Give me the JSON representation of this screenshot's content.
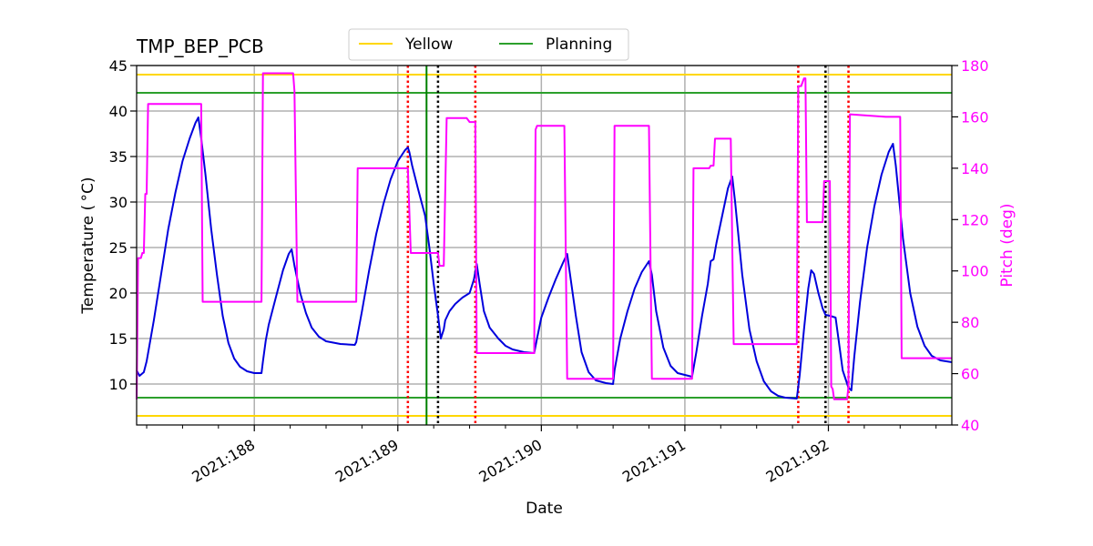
{
  "chart_data": {
    "type": "line",
    "title": "TMP_BEP_PCB",
    "xlabel": "Date",
    "ylabel_left": "Temperature ($^\\circ$C)",
    "ylabel_left_display": "Temperature ( °C)",
    "ylabel_right": "Pitch (deg)",
    "xlim": [
      187.18,
      192.86
    ],
    "ylim_left": [
      5.5,
      45
    ],
    "ylim_right": [
      40,
      180
    ],
    "x_ticks": [
      188,
      189,
      190,
      191,
      192
    ],
    "x_tick_labels": [
      "2021:188",
      "2021:189",
      "2021:190",
      "2021:191",
      "2021:192"
    ],
    "y_left_ticks": [
      10,
      15,
      20,
      25,
      30,
      35,
      40,
      45
    ],
    "y_right_ticks": [
      40,
      60,
      80,
      100,
      120,
      140,
      160,
      180
    ],
    "grid": true,
    "legend": {
      "placement": "top-center",
      "entries": [
        {
          "label": "Yellow",
          "color": "#ffd700"
        },
        {
          "label": "Planning",
          "color": "#2ca02c"
        }
      ]
    },
    "colors": {
      "temperature": "#0000dd",
      "pitch": "#ff00ff",
      "yellow": "#ffd700",
      "planning": "#2ca02c",
      "red_marker": "#ff0000",
      "black_marker": "#000000",
      "now_marker": "#008000"
    },
    "hlines_left": [
      {
        "y": 44,
        "color": "#ffd700"
      },
      {
        "y": 6.5,
        "color": "#ffd700"
      },
      {
        "y": 42,
        "color": "#2ca02c"
      },
      {
        "y": 8.5,
        "color": "#2ca02c"
      }
    ],
    "vlines_red_dotted": [
      189.07,
      189.54,
      191.79,
      192.14
    ],
    "vlines_black_dotted": [
      189.28,
      191.98
    ],
    "vline_green_solid": 189.2,
    "series": [
      {
        "axis": "left",
        "color": "#0000dd",
        "points": [
          [
            187.18,
            11.5
          ],
          [
            187.2,
            10.9
          ],
          [
            187.23,
            11.3
          ],
          [
            187.25,
            12.5
          ],
          [
            187.3,
            17
          ],
          [
            187.35,
            22
          ],
          [
            187.4,
            27
          ],
          [
            187.45,
            31
          ],
          [
            187.5,
            34.5
          ],
          [
            187.55,
            37
          ],
          [
            187.59,
            38.7
          ],
          [
            187.61,
            39.3
          ],
          [
            187.63,
            37
          ],
          [
            187.66,
            33
          ],
          [
            187.7,
            27
          ],
          [
            187.74,
            22
          ],
          [
            187.78,
            17.5
          ],
          [
            187.82,
            14.5
          ],
          [
            187.86,
            12.8
          ],
          [
            187.9,
            11.9
          ],
          [
            187.95,
            11.4
          ],
          [
            188.0,
            11.2
          ],
          [
            188.05,
            11.2
          ],
          [
            188.06,
            12.5
          ],
          [
            188.08,
            14.8
          ],
          [
            188.1,
            16.5
          ],
          [
            188.15,
            19.5
          ],
          [
            188.2,
            22.5
          ],
          [
            188.24,
            24.3
          ],
          [
            188.26,
            24.8
          ],
          [
            188.28,
            23
          ],
          [
            188.32,
            20
          ],
          [
            188.36,
            17.8
          ],
          [
            188.4,
            16.2
          ],
          [
            188.45,
            15.2
          ],
          [
            188.5,
            14.7
          ],
          [
            188.6,
            14.4
          ],
          [
            188.7,
            14.3
          ],
          [
            188.71,
            14.6
          ],
          [
            188.75,
            18
          ],
          [
            188.8,
            22.5
          ],
          [
            188.85,
            26.5
          ],
          [
            188.9,
            29.8
          ],
          [
            188.95,
            32.5
          ],
          [
            189.0,
            34.5
          ],
          [
            189.05,
            35.7
          ],
          [
            189.07,
            36
          ],
          [
            189.08,
            35.5
          ],
          [
            189.1,
            34
          ],
          [
            189.14,
            31.5
          ],
          [
            189.19,
            28.5
          ],
          [
            189.22,
            25
          ],
          [
            189.25,
            21
          ],
          [
            189.28,
            17.5
          ],
          [
            189.3,
            15
          ],
          [
            189.32,
            16
          ],
          [
            189.33,
            17
          ],
          [
            189.36,
            18
          ],
          [
            189.4,
            18.8
          ],
          [
            189.45,
            19.5
          ],
          [
            189.5,
            20
          ],
          [
            189.53,
            21.5
          ],
          [
            189.55,
            23.2
          ],
          [
            189.57,
            21
          ],
          [
            189.6,
            18
          ],
          [
            189.64,
            16.2
          ],
          [
            189.7,
            15
          ],
          [
            189.75,
            14.2
          ],
          [
            189.8,
            13.8
          ],
          [
            189.88,
            13.5
          ],
          [
            189.95,
            13.4
          ],
          [
            189.97,
            15
          ],
          [
            190.0,
            17.3
          ],
          [
            190.05,
            19.5
          ],
          [
            190.1,
            21.5
          ],
          [
            190.15,
            23.3
          ],
          [
            190.18,
            24.3
          ],
          [
            190.2,
            22
          ],
          [
            190.24,
            17.5
          ],
          [
            190.28,
            13.5
          ],
          [
            190.33,
            11.3
          ],
          [
            190.38,
            10.4
          ],
          [
            190.45,
            10.1
          ],
          [
            190.5,
            10.0
          ],
          [
            190.51,
            11.5
          ],
          [
            190.55,
            15
          ],
          [
            190.6,
            18
          ],
          [
            190.65,
            20.5
          ],
          [
            190.7,
            22.3
          ],
          [
            190.75,
            23.5
          ],
          [
            190.77,
            22
          ],
          [
            190.8,
            18
          ],
          [
            190.85,
            14
          ],
          [
            190.9,
            12
          ],
          [
            190.95,
            11.2
          ],
          [
            191.0,
            11
          ],
          [
            191.05,
            10.8
          ],
          [
            191.08,
            13.5
          ],
          [
            191.12,
            17.5
          ],
          [
            191.16,
            21
          ],
          [
            191.18,
            23.5
          ],
          [
            191.2,
            23.7
          ],
          [
            191.22,
            25.5
          ],
          [
            191.26,
            28.5
          ],
          [
            191.3,
            31.5
          ],
          [
            191.33,
            32.8
          ],
          [
            191.35,
            30
          ],
          [
            191.4,
            22
          ],
          [
            191.45,
            16
          ],
          [
            191.5,
            12.5
          ],
          [
            191.55,
            10.3
          ],
          [
            191.6,
            9.2
          ],
          [
            191.65,
            8.7
          ],
          [
            191.7,
            8.5
          ],
          [
            191.78,
            8.4
          ],
          [
            191.8,
            11
          ],
          [
            191.83,
            16
          ],
          [
            191.86,
            20.5
          ],
          [
            191.88,
            22.5
          ],
          [
            191.9,
            22.1
          ],
          [
            191.93,
            20
          ],
          [
            191.96,
            18.3
          ],
          [
            191.98,
            17.6
          ],
          [
            192.01,
            17.5
          ],
          [
            192.05,
            17.3
          ],
          [
            192.07,
            15
          ],
          [
            192.1,
            11.5
          ],
          [
            192.14,
            9.6
          ],
          [
            192.16,
            9.3
          ],
          [
            192.18,
            13
          ],
          [
            192.22,
            19
          ],
          [
            192.27,
            25
          ],
          [
            192.32,
            29.5
          ],
          [
            192.37,
            33
          ],
          [
            192.42,
            35.5
          ],
          [
            192.45,
            36.4
          ],
          [
            192.47,
            34
          ],
          [
            192.52,
            26
          ],
          [
            192.57,
            20
          ],
          [
            192.62,
            16.3
          ],
          [
            192.67,
            14.2
          ],
          [
            192.72,
            13.1
          ],
          [
            192.78,
            12.6
          ],
          [
            192.86,
            12.4
          ]
        ]
      },
      {
        "axis": "right",
        "color": "#ff00ff",
        "points": [
          [
            187.18,
            50
          ],
          [
            187.19,
            105
          ],
          [
            187.21,
            105
          ],
          [
            187.22,
            107
          ],
          [
            187.23,
            107
          ],
          [
            187.24,
            130
          ],
          [
            187.25,
            130
          ],
          [
            187.26,
            165
          ],
          [
            187.61,
            165
          ],
          [
            187.63,
            165
          ],
          [
            187.64,
            88
          ],
          [
            188.05,
            88
          ],
          [
            188.06,
            177
          ],
          [
            188.27,
            177
          ],
          [
            188.28,
            170
          ],
          [
            188.3,
            88
          ],
          [
            188.71,
            88
          ],
          [
            188.72,
            140
          ],
          [
            189.07,
            140
          ],
          [
            189.09,
            107
          ],
          [
            189.28,
            107
          ],
          [
            189.29,
            102
          ],
          [
            189.32,
            102
          ],
          [
            189.34,
            159.5
          ],
          [
            189.48,
            159.5
          ],
          [
            189.5,
            158
          ],
          [
            189.54,
            158
          ],
          [
            189.55,
            68
          ],
          [
            189.95,
            68
          ],
          [
            189.96,
            155
          ],
          [
            189.97,
            156.5
          ],
          [
            190.16,
            156.5
          ],
          [
            190.18,
            58
          ],
          [
            190.5,
            58
          ],
          [
            190.51,
            156.5
          ],
          [
            190.75,
            156.5
          ],
          [
            190.77,
            58
          ],
          [
            191.05,
            58
          ],
          [
            191.06,
            140
          ],
          [
            191.17,
            140
          ],
          [
            191.18,
            141
          ],
          [
            191.2,
            141
          ],
          [
            191.21,
            151.5
          ],
          [
            191.32,
            151.5
          ],
          [
            191.34,
            71.5
          ],
          [
            191.78,
            71.5
          ],
          [
            191.79,
            172
          ],
          [
            191.81,
            172
          ],
          [
            191.83,
            175
          ],
          [
            191.84,
            175
          ],
          [
            191.85,
            119
          ],
          [
            191.96,
            119
          ],
          [
            191.97,
            135
          ],
          [
            191.99,
            135
          ],
          [
            192.01,
            135
          ],
          [
            192.02,
            55
          ],
          [
            192.03,
            54
          ],
          [
            192.04,
            50
          ],
          [
            192.13,
            50
          ],
          [
            192.14,
            55
          ],
          [
            192.15,
            161
          ],
          [
            192.4,
            160
          ],
          [
            192.45,
            160
          ],
          [
            192.5,
            160
          ],
          [
            192.51,
            66
          ],
          [
            192.86,
            66
          ]
        ]
      }
    ]
  }
}
